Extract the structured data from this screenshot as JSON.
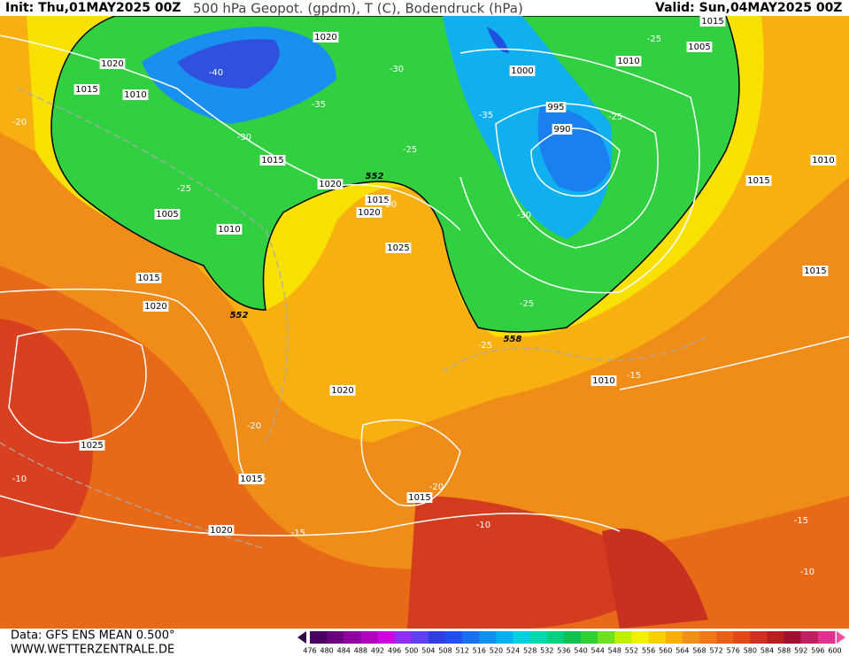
{
  "header": {
    "init": "Init: Thu,01MAY2025 00Z",
    "title": "500 hPa Geopot. (gpdm), T (C), Bodendruck (hPa)",
    "valid": "Valid: Sun,04MAY2025 00Z"
  },
  "map": {
    "isobar_labels": [
      "1020",
      "1020",
      "1015",
      "1010",
      "1015",
      "1020",
      "1015",
      "1020",
      "1025",
      "1005",
      "1010",
      "1015",
      "1020",
      "1020",
      "1025",
      "1015",
      "1015",
      "1020",
      "1000",
      "995",
      "990",
      "1005",
      "1010",
      "1015",
      "1010",
      "1015",
      "1015",
      "1010"
    ],
    "temperature_labels": [
      "-40",
      "-30",
      "-35",
      "-30",
      "-25",
      "-25",
      "-20",
      "-35",
      "-30",
      "-25",
      "-25",
      "-20",
      "-15",
      "-25",
      "-25",
      "-20",
      "-10",
      "-15",
      "-10",
      "-15",
      "-10",
      "-20"
    ],
    "geopotential_labels": [
      "552",
      "552",
      "558"
    ]
  },
  "footer": {
    "data": "Data: GFS ENS MEAN 0.500°",
    "site": "WWW.WETTERZENTRALE.DE"
  },
  "legend": {
    "values": [
      476,
      480,
      484,
      488,
      492,
      496,
      500,
      504,
      508,
      512,
      516,
      520,
      524,
      528,
      532,
      536,
      540,
      544,
      548,
      552,
      556,
      560,
      564,
      568,
      572,
      576,
      580,
      584,
      588,
      592,
      596,
      600
    ],
    "colors": [
      "#4a0060",
      "#6a0080",
      "#9000a0",
      "#b000c0",
      "#d000e0",
      "#9030f0",
      "#6040f0",
      "#3040e0",
      "#2050f0",
      "#1870f0",
      "#1090f0",
      "#00b0f0",
      "#00d0e0",
      "#00d8b0",
      "#00d080",
      "#10c050",
      "#30d030",
      "#70e020",
      "#c0f000",
      "#f0f000",
      "#f8d000",
      "#f8b000",
      "#f09018",
      "#f07818",
      "#e86018",
      "#e04818",
      "#d03020",
      "#b82020",
      "#a01030",
      "#c02060",
      "#e03090"
    ]
  }
}
